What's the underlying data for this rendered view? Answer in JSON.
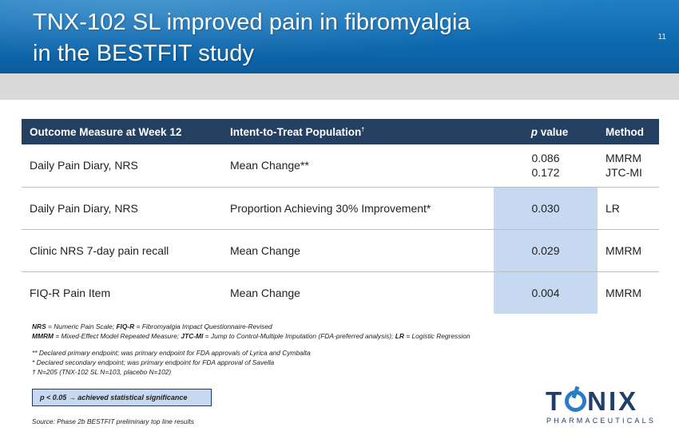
{
  "slide": {
    "title_line1": "TNX-102 SL improved pain in fibromyalgia",
    "title_line2": "in the BESTFIT study",
    "number": "11"
  },
  "table": {
    "headers": {
      "outcome": "Outcome Measure at Week 12",
      "population": "Intent-to-Treat Population",
      "population_mark": "†",
      "p_italic": "p",
      "p_rest": " value",
      "method": "Method"
    },
    "rows": [
      {
        "outcome": "Daily Pain Diary, NRS",
        "measure": "Mean Change**",
        "p_values": [
          "0.086",
          "0.172"
        ],
        "methods": [
          "MMRM",
          "JTC-MI"
        ],
        "highlight": false
      },
      {
        "outcome": "Daily Pain Diary, NRS",
        "measure": "Proportion Achieving 30% Improvement*",
        "p_values": [
          "0.030"
        ],
        "methods": [
          "LR"
        ],
        "highlight": true
      },
      {
        "outcome": "Clinic NRS 7-day pain recall",
        "measure": "Mean Change",
        "p_values": [
          "0.029"
        ],
        "methods": [
          "MMRM"
        ],
        "highlight": true
      },
      {
        "outcome": "FIQ-R Pain Item",
        "measure": "Mean Change",
        "p_values": [
          "0.004"
        ],
        "methods": [
          "MMRM"
        ],
        "highlight": true
      }
    ]
  },
  "notes": {
    "abbrev1": {
      "nrs_term": "NRS",
      "nrs_def": " = Numeric Pain Scale; ",
      "fiqr_term": "FIQ-R",
      "fiqr_def": " = Fibromyalgia Impact Questionnaire-Revised"
    },
    "abbrev2": {
      "mmrm_term": "MMRM",
      "mmrm_def": " = Mixed-Effect Model Repeated Measure; ",
      "jtc_term": "JTC-MI",
      "jtc_def": " = Jump to Control-Multiple Imputation (FDA-preferred analysis); ",
      "lr_term": "LR",
      "lr_def": " = Logistic Regression"
    },
    "primary": "** Declared primary endpoint; was primary endpoint for FDA approvals of Lyrica and Cymbalta",
    "secondary": "* Declared secondary endpoint; was primary endpoint for FDA approval of Savella",
    "itt": "† N=205 (TNX-102 SL N=103, placebo N=102)"
  },
  "significance_box": "p < 0.05 → achieved statistical significance",
  "source": "Source: Phase 2b BESTFIT preliminary top line results",
  "logo": {
    "word_left": "T",
    "word_right": "NIX",
    "sub": "PHARMACEUTICALS",
    "colors": {
      "navy": "#1f3e6b",
      "blue": "#2a7cc7"
    }
  },
  "colors": {
    "header_blue": "#0f6ab0",
    "table_header": "#243f60",
    "highlight": "#c6d9f1"
  }
}
